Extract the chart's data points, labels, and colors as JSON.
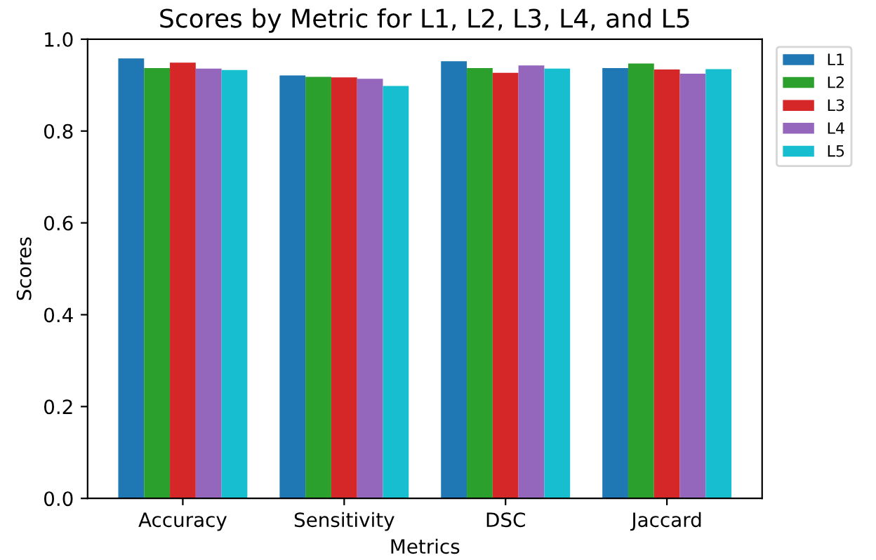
{
  "chart_data": {
    "type": "bar",
    "title": "Scores by Metric for L1, L2, L3, L4, and L5",
    "xlabel": "Metrics",
    "ylabel": "Scores",
    "categories": [
      "Accuracy",
      "Sensitivity",
      "DSC",
      "Jaccard"
    ],
    "series": [
      {
        "name": "L1",
        "color": "#1f77b4",
        "values": [
          0.958,
          0.921,
          0.952,
          0.937
        ]
      },
      {
        "name": "L2",
        "color": "#2ca02c",
        "values": [
          0.937,
          0.918,
          0.937,
          0.947
        ]
      },
      {
        "name": "L3",
        "color": "#d62728",
        "values": [
          0.949,
          0.917,
          0.927,
          0.934
        ]
      },
      {
        "name": "L4",
        "color": "#9467bd",
        "values": [
          0.936,
          0.914,
          0.943,
          0.925
        ]
      },
      {
        "name": "L5",
        "color": "#17becf",
        "values": [
          0.933,
          0.898,
          0.936,
          0.935
        ]
      }
    ],
    "ylim": [
      0,
      1.0
    ],
    "yticks": [
      {
        "value": 0,
        "label": "0.0"
      },
      0.2,
      0.4,
      0.6,
      0.8,
      {
        "value": 1,
        "label": "1.0"
      }
    ],
    "legend": "right"
  }
}
